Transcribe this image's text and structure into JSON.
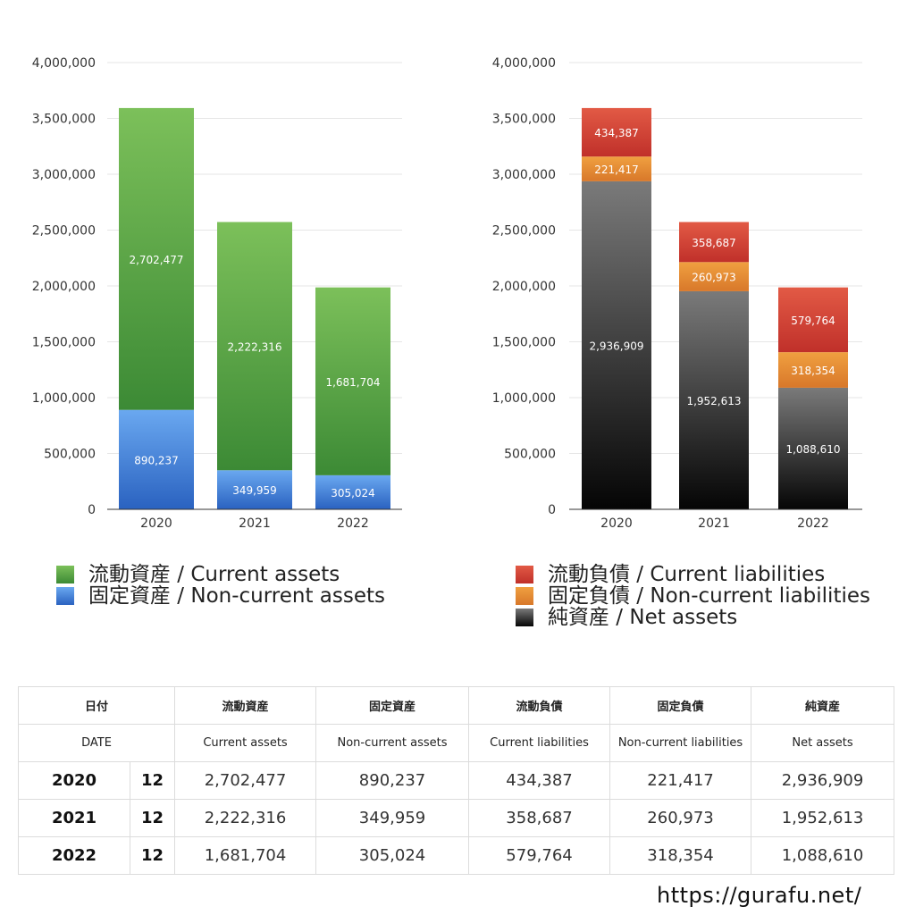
{
  "chart_data": [
    {
      "type": "bar",
      "stacked": true,
      "categories": [
        "2020",
        "2021",
        "2022"
      ],
      "ylim": [
        0,
        4000000
      ],
      "yticks": [
        "0",
        "500,000",
        "1,000,000",
        "1,500,000",
        "2,000,000",
        "2,500,000",
        "3,000,000",
        "3,500,000",
        "4,000,000"
      ],
      "grid": true,
      "legend_position": "bottom",
      "series": [
        {
          "name": "固定資産 / Non-current assets",
          "values": [
            890237,
            349959,
            305024
          ],
          "labels": [
            "890,237",
            "349,959",
            "305,024"
          ],
          "color": "#3f7fd8"
        },
        {
          "name": "流動資産 / Current assets",
          "values": [
            2702477,
            2222316,
            1681704
          ],
          "labels": [
            "2,702,477",
            "2,222,316",
            "1,681,704"
          ],
          "color": "#4a9a3c"
        }
      ]
    },
    {
      "type": "bar",
      "stacked": true,
      "categories": [
        "2020",
        "2021",
        "2022"
      ],
      "ylim": [
        0,
        4000000
      ],
      "yticks": [
        "0",
        "500,000",
        "1,000,000",
        "1,500,000",
        "2,000,000",
        "2,500,000",
        "3,000,000",
        "3,500,000",
        "4,000,000"
      ],
      "grid": true,
      "legend_position": "bottom",
      "series": [
        {
          "name": "純資産 / Net assets",
          "values": [
            2936909,
            1952613,
            1088610
          ],
          "labels": [
            "2,936,909",
            "1,952,613",
            "1,088,610"
          ],
          "color": "#444444"
        },
        {
          "name": "固定負債 / Non-current liabilities",
          "values": [
            221417,
            260973,
            318354
          ],
          "labels": [
            "221,417",
            "260,973",
            "318,354"
          ],
          "color": "#e08a2e"
        },
        {
          "name": "流動負債 / Current liabilities",
          "values": [
            434387,
            358687,
            579764
          ],
          "labels": [
            "434,387",
            "358,687",
            "579,764"
          ],
          "color": "#cf4436"
        }
      ]
    }
  ],
  "legends": {
    "left": [
      {
        "label": "流動資産 / Current assets",
        "color": "#4a9a3c"
      },
      {
        "label": "固定資産 / Non-current assets",
        "color": "#3f7fd8"
      }
    ],
    "right": [
      {
        "label": "流動負債 / Current liabilities",
        "color": "#cf4436"
      },
      {
        "label": "固定負債 / Non-current liabilities",
        "color": "#e08a2e"
      },
      {
        "label": "純資産 / Net assets",
        "color": "#333333"
      }
    ]
  },
  "table": {
    "header_jp": [
      "日付",
      "流動資産",
      "固定資産",
      "流動負債",
      "固定負債",
      "純資産"
    ],
    "header_en": [
      "DATE",
      "Current assets",
      "Non-current assets",
      "Current liabilities",
      "Non-current liabilities",
      "Net assets"
    ],
    "rows": [
      {
        "year": "2020",
        "month": "12",
        "values": [
          "2,702,477",
          "890,237",
          "434,387",
          "221,417",
          "2,936,909"
        ]
      },
      {
        "year": "2021",
        "month": "12",
        "values": [
          "2,222,316",
          "349,959",
          "358,687",
          "260,973",
          "1,952,613"
        ]
      },
      {
        "year": "2022",
        "month": "12",
        "values": [
          "1,681,704",
          "305,024",
          "579,764",
          "318,354",
          "1,088,610"
        ]
      }
    ]
  },
  "site_url": "https://gurafu.net/"
}
